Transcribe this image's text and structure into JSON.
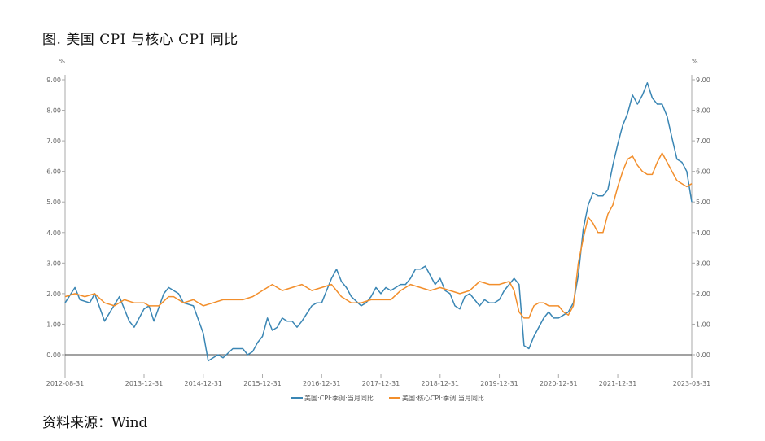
{
  "title": "图. 美国 CPI 与核心 CPI 同比",
  "source": "资料来源：Wind",
  "chart_data": {
    "type": "line",
    "y_unit_left": "%",
    "y_unit_right": "%",
    "ylim": [
      0,
      9
    ],
    "y_ticks": [
      "0.00",
      "1.00",
      "2.00",
      "3.00",
      "4.00",
      "5.00",
      "6.00",
      "7.00",
      "8.00",
      "9.00"
    ],
    "x_range": [
      "2012-08",
      "2023-03"
    ],
    "x_tick_labels": [
      "2012-08-31",
      "2013-12-31",
      "2014-12-31",
      "2015-12-31",
      "2016-12-31",
      "2017-12-31",
      "2018-12-31",
      "2019-12-31",
      "2020-12-31",
      "2021-12-31",
      "2023-03-31"
    ],
    "grid": false,
    "legend_position": "bottom-center",
    "series": [
      {
        "name": "美国:CPI:季调:当月同比",
        "color": "#3a86b4",
        "points": [
          [
            "2012-08",
            1.7
          ],
          [
            "2012-10",
            2.2
          ],
          [
            "2012-11",
            1.8
          ],
          [
            "2013-01",
            1.7
          ],
          [
            "2013-02",
            2.0
          ],
          [
            "2013-04",
            1.1
          ],
          [
            "2013-07",
            1.9
          ],
          [
            "2013-09",
            1.1
          ],
          [
            "2013-10",
            0.9
          ],
          [
            "2013-12",
            1.5
          ],
          [
            "2014-01",
            1.6
          ],
          [
            "2014-02",
            1.1
          ],
          [
            "2014-04",
            2.0
          ],
          [
            "2014-05",
            2.2
          ],
          [
            "2014-07",
            2.0
          ],
          [
            "2014-08",
            1.7
          ],
          [
            "2014-10",
            1.6
          ],
          [
            "2014-12",
            0.7
          ],
          [
            "2015-01",
            -0.2
          ],
          [
            "2015-03",
            -0.0
          ],
          [
            "2015-04",
            -0.1
          ],
          [
            "2015-06",
            0.2
          ],
          [
            "2015-08",
            0.2
          ],
          [
            "2015-09",
            0.0
          ],
          [
            "2015-10",
            0.1
          ],
          [
            "2015-11",
            0.4
          ],
          [
            "2015-12",
            0.6
          ],
          [
            "2016-01",
            1.2
          ],
          [
            "2016-02",
            0.8
          ],
          [
            "2016-03",
            0.9
          ],
          [
            "2016-04",
            1.2
          ],
          [
            "2016-05",
            1.1
          ],
          [
            "2016-06",
            1.1
          ],
          [
            "2016-07",
            0.9
          ],
          [
            "2016-08",
            1.1
          ],
          [
            "2016-10",
            1.6
          ],
          [
            "2016-11",
            1.7
          ],
          [
            "2016-12",
            1.7
          ],
          [
            "2017-01",
            2.1
          ],
          [
            "2017-02",
            2.5
          ],
          [
            "2017-03",
            2.8
          ],
          [
            "2017-04",
            2.4
          ],
          [
            "2017-05",
            2.2
          ],
          [
            "2017-06",
            1.9
          ],
          [
            "2017-08",
            1.6
          ],
          [
            "2017-09",
            1.7
          ],
          [
            "2017-10",
            1.9
          ],
          [
            "2017-11",
            2.2
          ],
          [
            "2017-12",
            2.0
          ],
          [
            "2018-01",
            2.2
          ],
          [
            "2018-02",
            2.1
          ],
          [
            "2018-03",
            2.2
          ],
          [
            "2018-04",
            2.3
          ],
          [
            "2018-05",
            2.3
          ],
          [
            "2018-06",
            2.5
          ],
          [
            "2018-07",
            2.8
          ],
          [
            "2018-08",
            2.8
          ],
          [
            "2018-09",
            2.9
          ],
          [
            "2018-10",
            2.6
          ],
          [
            "2018-11",
            2.3
          ],
          [
            "2018-12",
            2.5
          ],
          [
            "2019-01",
            2.1
          ],
          [
            "2019-02",
            2.0
          ],
          [
            "2019-03",
            1.6
          ],
          [
            "2019-04",
            1.5
          ],
          [
            "2019-05",
            1.9
          ],
          [
            "2019-06",
            2.0
          ],
          [
            "2019-08",
            1.6
          ],
          [
            "2019-09",
            1.8
          ],
          [
            "2019-10",
            1.7
          ],
          [
            "2019-11",
            1.7
          ],
          [
            "2019-12",
            1.8
          ],
          [
            "2020-01",
            2.1
          ],
          [
            "2020-03",
            2.5
          ],
          [
            "2020-04",
            2.3
          ],
          [
            "2020-05",
            0.3
          ],
          [
            "2020-06",
            0.2
          ],
          [
            "2020-07",
            0.6
          ],
          [
            "2020-09",
            1.2
          ],
          [
            "2020-10",
            1.4
          ],
          [
            "2020-11",
            1.2
          ],
          [
            "2020-12",
            1.2
          ],
          [
            "2021-01",
            1.3
          ],
          [
            "2021-02",
            1.4
          ],
          [
            "2021-03",
            1.7
          ],
          [
            "2021-04",
            2.6
          ],
          [
            "2021-05",
            4.1
          ],
          [
            "2021-06",
            4.9
          ],
          [
            "2021-07",
            5.3
          ],
          [
            "2021-08",
            5.2
          ],
          [
            "2021-09",
            5.2
          ],
          [
            "2021-10",
            5.4
          ],
          [
            "2021-11",
            6.2
          ],
          [
            "2021-12",
            6.9
          ],
          [
            "2022-01",
            7.5
          ],
          [
            "2022-02",
            7.9
          ],
          [
            "2022-03",
            8.5
          ],
          [
            "2022-04",
            8.2
          ],
          [
            "2022-05",
            8.5
          ],
          [
            "2022-06",
            8.9
          ],
          [
            "2022-07",
            8.4
          ],
          [
            "2022-08",
            8.2
          ],
          [
            "2022-09",
            8.2
          ],
          [
            "2022-10",
            7.8
          ],
          [
            "2022-11",
            7.1
          ],
          [
            "2022-12",
            6.4
          ],
          [
            "2023-01",
            6.3
          ],
          [
            "2023-02",
            6.0
          ],
          [
            "2023-03",
            5.0
          ]
        ]
      },
      {
        "name": "美国:核心CPI:季调:当月同比",
        "color": "#f28e2b",
        "points": [
          [
            "2012-08",
            1.9
          ],
          [
            "2012-10",
            2.0
          ],
          [
            "2012-12",
            1.9
          ],
          [
            "2013-02",
            2.0
          ],
          [
            "2013-04",
            1.7
          ],
          [
            "2013-06",
            1.6
          ],
          [
            "2013-08",
            1.8
          ],
          [
            "2013-10",
            1.7
          ],
          [
            "2013-12",
            1.7
          ],
          [
            "2014-01",
            1.6
          ],
          [
            "2014-03",
            1.6
          ],
          [
            "2014-05",
            1.9
          ],
          [
            "2014-06",
            1.9
          ],
          [
            "2014-08",
            1.7
          ],
          [
            "2014-10",
            1.8
          ],
          [
            "2014-12",
            1.6
          ],
          [
            "2015-02",
            1.7
          ],
          [
            "2015-04",
            1.8
          ],
          [
            "2015-08",
            1.8
          ],
          [
            "2015-10",
            1.9
          ],
          [
            "2015-12",
            2.1
          ],
          [
            "2016-02",
            2.3
          ],
          [
            "2016-04",
            2.1
          ],
          [
            "2016-06",
            2.2
          ],
          [
            "2016-08",
            2.3
          ],
          [
            "2016-10",
            2.1
          ],
          [
            "2016-12",
            2.2
          ],
          [
            "2017-02",
            2.3
          ],
          [
            "2017-04",
            1.9
          ],
          [
            "2017-06",
            1.7
          ],
          [
            "2017-08",
            1.7
          ],
          [
            "2017-10",
            1.8
          ],
          [
            "2017-12",
            1.8
          ],
          [
            "2018-02",
            1.8
          ],
          [
            "2018-04",
            2.1
          ],
          [
            "2018-06",
            2.3
          ],
          [
            "2018-08",
            2.2
          ],
          [
            "2018-10",
            2.1
          ],
          [
            "2018-12",
            2.2
          ],
          [
            "2019-02",
            2.1
          ],
          [
            "2019-04",
            2.0
          ],
          [
            "2019-06",
            2.1
          ],
          [
            "2019-08",
            2.4
          ],
          [
            "2019-10",
            2.3
          ],
          [
            "2019-12",
            2.3
          ],
          [
            "2020-02",
            2.4
          ],
          [
            "2020-03",
            2.1
          ],
          [
            "2020-04",
            1.4
          ],
          [
            "2020-05",
            1.2
          ],
          [
            "2020-06",
            1.2
          ],
          [
            "2020-07",
            1.6
          ],
          [
            "2020-08",
            1.7
          ],
          [
            "2020-09",
            1.7
          ],
          [
            "2020-10",
            1.6
          ],
          [
            "2020-11",
            1.6
          ],
          [
            "2020-12",
            1.6
          ],
          [
            "2021-01",
            1.4
          ],
          [
            "2021-02",
            1.3
          ],
          [
            "2021-03",
            1.6
          ],
          [
            "2021-04",
            3.0
          ],
          [
            "2021-05",
            3.8
          ],
          [
            "2021-06",
            4.5
          ],
          [
            "2021-07",
            4.3
          ],
          [
            "2021-08",
            4.0
          ],
          [
            "2021-09",
            4.0
          ],
          [
            "2021-10",
            4.6
          ],
          [
            "2021-11",
            4.9
          ],
          [
            "2021-12",
            5.5
          ],
          [
            "2022-01",
            6.0
          ],
          [
            "2022-02",
            6.4
          ],
          [
            "2022-03",
            6.5
          ],
          [
            "2022-04",
            6.2
          ],
          [
            "2022-05",
            6.0
          ],
          [
            "2022-06",
            5.9
          ],
          [
            "2022-07",
            5.9
          ],
          [
            "2022-08",
            6.3
          ],
          [
            "2022-09",
            6.6
          ],
          [
            "2022-10",
            6.3
          ],
          [
            "2022-11",
            6.0
          ],
          [
            "2022-12",
            5.7
          ],
          [
            "2023-01",
            5.6
          ],
          [
            "2023-02",
            5.5
          ],
          [
            "2023-03",
            5.6
          ]
        ]
      }
    ]
  }
}
